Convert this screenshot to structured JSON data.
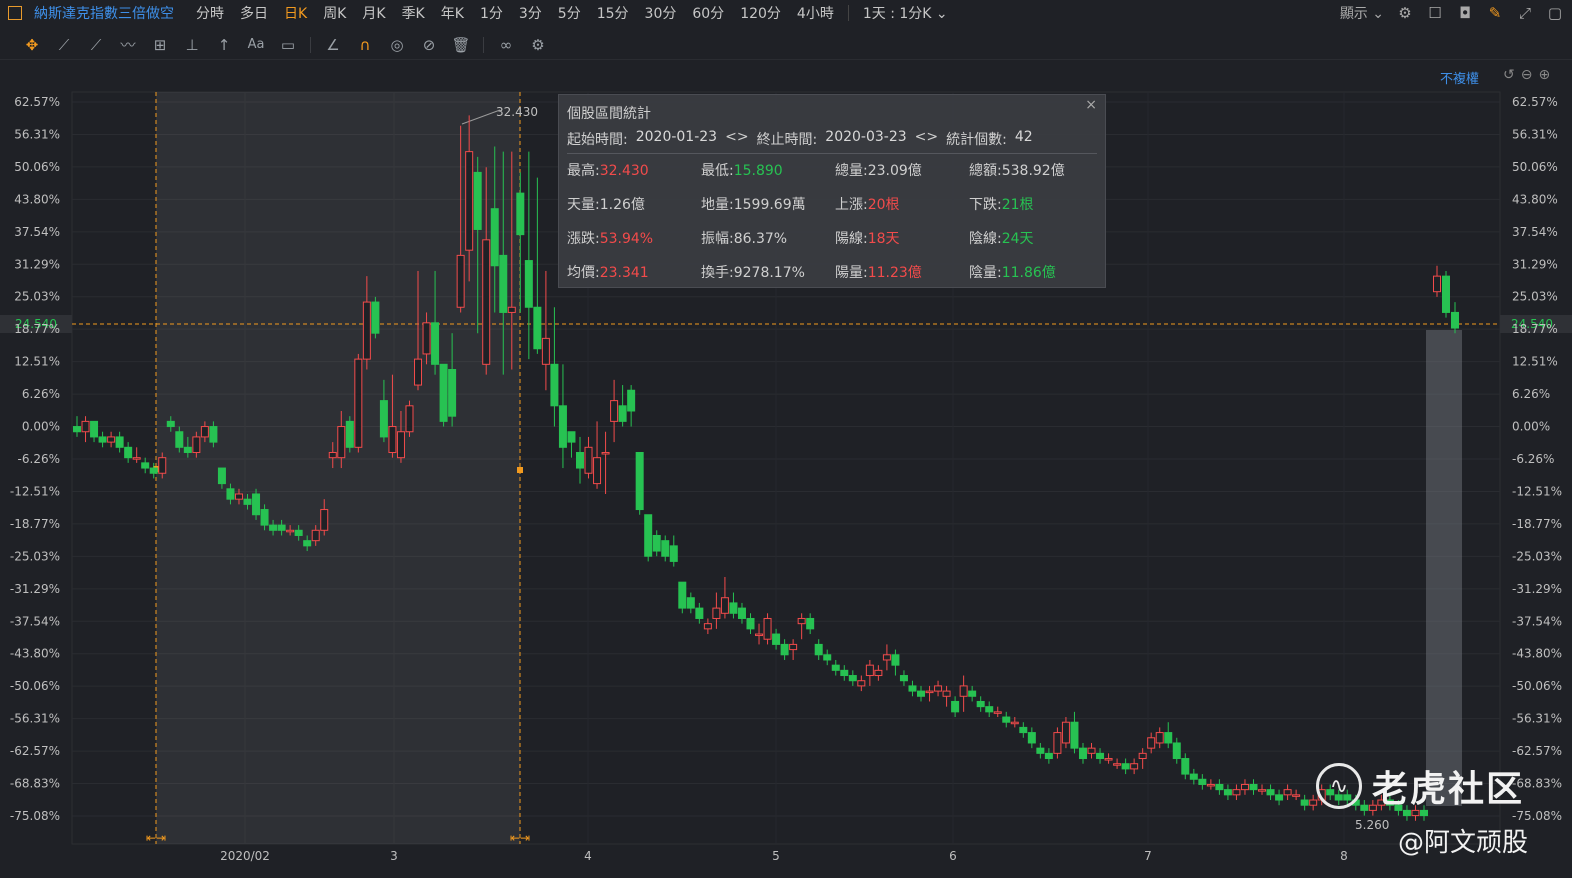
{
  "header": {
    "symbol": "納斯達克指數三倍做空",
    "timeframes": [
      "分時",
      "多日",
      "日K",
      "周K",
      "月K",
      "季K",
      "年K",
      "1分",
      "3分",
      "5分",
      "15分",
      "30分",
      "60分",
      "120分",
      "4小時"
    ],
    "active_timeframe": "日K",
    "range_select": "1天 : 1分K",
    "display_label": "顯示"
  },
  "toolbar_icons": [
    "move-icon",
    "line-icon",
    "channel-icon",
    "wave-icon",
    "measure-icon",
    "arrow-up-icon",
    "arrow-icon",
    "text-icon",
    "comment-icon",
    "angle-icon",
    "magnet-icon",
    "eye-icon",
    "hide-icon",
    "delete-icon",
    "link-icon",
    "settings-icon"
  ],
  "adjust_label": "不複權",
  "stats": {
    "title": "個股區間統計",
    "start_label": "起始時間:",
    "start": "2020-01-23",
    "end_label": "終止時間:",
    "end": "2020-03-23",
    "count_label": "統計個數:",
    "count": "42",
    "rows": [
      [
        {
          "label": "最高:",
          "value": "32.430",
          "color": "red"
        },
        {
          "label": "最低:",
          "value": "15.890",
          "color": "green"
        },
        {
          "label": "總量:",
          "value": "23.09億",
          "color": ""
        },
        {
          "label": "總額:",
          "value": "538.92億",
          "color": ""
        }
      ],
      [
        {
          "label": "天量:",
          "value": "1.26億",
          "color": ""
        },
        {
          "label": "地量:",
          "value": "1599.69萬",
          "color": ""
        },
        {
          "label": "上漲:",
          "value": "20根",
          "color": "red"
        },
        {
          "label": "下跌:",
          "value": "21根",
          "color": "green"
        }
      ],
      [
        {
          "label": "漲跌:",
          "value": "53.94%",
          "color": "red"
        },
        {
          "label": "振幅:",
          "value": "86.37%",
          "color": ""
        },
        {
          "label": "陽線:",
          "value": "18天",
          "color": "red"
        },
        {
          "label": "陰線:",
          "value": "24天",
          "color": "green"
        }
      ],
      [
        {
          "label": "均價:",
          "value": "23.341",
          "color": "red"
        },
        {
          "label": "換手:",
          "value": "9278.17%",
          "color": ""
        },
        {
          "label": "陽量:",
          "value": "11.23億",
          "color": "red"
        },
        {
          "label": "陰量:",
          "value": "11.86億",
          "color": "green"
        }
      ]
    ]
  },
  "chart_data": {
    "type": "candlestick",
    "y_ticks": [
      "62.57%",
      "56.31%",
      "50.06%",
      "43.80%",
      "37.54%",
      "31.29%",
      "25.03%",
      "18.77%",
      "12.51%",
      "6.26%",
      "0.00%",
      "-6.26%",
      "-12.51%",
      "-18.77%",
      "-25.03%",
      "-31.29%",
      "-37.54%",
      "-43.80%",
      "-50.06%",
      "-56.31%",
      "-62.57%",
      "-68.83%",
      "-75.08%"
    ],
    "ylim_pct": [
      -75.08,
      62.57
    ],
    "x_ticks": [
      "2020/02",
      "3",
      "4",
      "5",
      "6",
      "7",
      "8"
    ],
    "crosshair_value": "24.540",
    "high_marker": "32.430",
    "low_marker": "5.260",
    "colors": {
      "up": "#f24b4b",
      "down": "#27c252",
      "marker": "#f29a1f"
    },
    "candles_pct": [
      [
        0,
        -1,
        2,
        -2
      ],
      [
        -1,
        1,
        2,
        -3
      ],
      [
        1,
        -2,
        1,
        -3
      ],
      [
        -2,
        -3,
        -1,
        -4
      ],
      [
        -3,
        -2,
        -1,
        -4
      ],
      [
        -2,
        -4,
        -1,
        -5
      ],
      [
        -4,
        -6,
        -3,
        -7
      ],
      [
        -6,
        -6,
        -4,
        -7
      ],
      [
        -7,
        -8,
        -6,
        -9
      ],
      [
        -8,
        -9,
        -7,
        -10
      ],
      [
        -9,
        -6,
        -5,
        -10
      ],
      [
        1,
        0,
        2,
        -1
      ],
      [
        -1,
        -4,
        0,
        -5
      ],
      [
        -4,
        -5,
        -2,
        -6
      ],
      [
        -5,
        -2,
        -1,
        -6
      ],
      [
        -2,
        0,
        1,
        -3
      ],
      [
        0,
        -3,
        1,
        -4
      ],
      [
        -8,
        -11,
        -8,
        -12
      ],
      [
        -12,
        -14,
        -11,
        -15
      ],
      [
        -14,
        -13,
        -12,
        -15
      ],
      [
        -14,
        -15,
        -13,
        -16
      ],
      [
        -13,
        -17,
        -12,
        -18
      ],
      [
        -16,
        -19,
        -15,
        -20
      ],
      [
        -19,
        -20,
        -18,
        -21
      ],
      [
        -19,
        -20,
        -18,
        -21
      ],
      [
        -20,
        -20,
        -19,
        -21
      ],
      [
        -20,
        -21,
        -19,
        -22
      ],
      [
        -22,
        -23,
        -21,
        -24
      ],
      [
        -22,
        -20,
        -19,
        -23
      ],
      [
        -20,
        -16,
        -14,
        -21
      ],
      [
        -6,
        -5,
        -3,
        -8
      ],
      [
        -6,
        0,
        3,
        -8
      ],
      [
        1,
        -4,
        2,
        -5
      ],
      [
        -4,
        13,
        14,
        -5
      ],
      [
        13,
        24,
        29,
        11
      ],
      [
        24,
        18,
        25,
        17
      ],
      [
        5,
        -2,
        9,
        -3
      ],
      [
        -5,
        0,
        10,
        -6
      ],
      [
        -6,
        -1,
        3,
        -7
      ],
      [
        -1,
        4,
        5,
        -2
      ],
      [
        8,
        13,
        30,
        7
      ],
      [
        14,
        20,
        22,
        12
      ],
      [
        20,
        12,
        30,
        10
      ],
      [
        12,
        1,
        10,
        0
      ],
      [
        11,
        2,
        18,
        0
      ],
      [
        23,
        33,
        58,
        22
      ],
      [
        34,
        53,
        60,
        28
      ],
      [
        49,
        38,
        52,
        18
      ],
      [
        12,
        36,
        50,
        10
      ],
      [
        42,
        31,
        54,
        22
      ],
      [
        33,
        22,
        53,
        10
      ],
      [
        22,
        23,
        53,
        11
      ],
      [
        45,
        37,
        49,
        22
      ],
      [
        32,
        23,
        53,
        13
      ],
      [
        23,
        15,
        48,
        14
      ],
      [
        12,
        17,
        30,
        7
      ],
      [
        12,
        4,
        23,
        0
      ],
      [
        4,
        -4,
        12,
        -8
      ],
      [
        -1,
        -3,
        -1,
        -6
      ],
      [
        -5,
        -8,
        -2,
        -11
      ],
      [
        -9,
        -4,
        -2,
        -10
      ],
      [
        -11,
        -6,
        1,
        -12
      ],
      [
        -5,
        -5,
        -1,
        -13
      ],
      [
        1,
        5,
        9,
        -3
      ],
      [
        4,
        1,
        8,
        0
      ],
      [
        7,
        3,
        8,
        0
      ],
      [
        -5,
        -16,
        -5,
        -17
      ],
      [
        -17,
        -25,
        -17,
        -26
      ],
      [
        -21,
        -24,
        -20,
        -25
      ],
      [
        -22,
        -25,
        -21,
        -26
      ],
      [
        -23,
        -26,
        -21,
        -27
      ],
      [
        -30,
        -35,
        -30,
        -36
      ],
      [
        -33,
        -35,
        -32,
        -36
      ],
      [
        -35,
        -37,
        -34,
        -38
      ],
      [
        -39,
        -38,
        -37,
        -40
      ],
      [
        -37,
        -35,
        -32,
        -39
      ],
      [
        -36,
        -33,
        -29,
        -37
      ],
      [
        -34,
        -36,
        -32,
        -37
      ],
      [
        -35,
        -37,
        -34,
        -38
      ],
      [
        -37,
        -39,
        -36,
        -40
      ],
      [
        -40,
        -40,
        -38,
        -42
      ],
      [
        -41,
        -37,
        -36,
        -42
      ],
      [
        -40,
        -42,
        -39,
        -43
      ],
      [
        -42,
        -44,
        -41,
        -45
      ],
      [
        -43,
        -42,
        -41,
        -45
      ],
      [
        -38,
        -37,
        -36,
        -41
      ],
      [
        -37,
        -39,
        -36,
        -40
      ],
      [
        -42,
        -44,
        -41,
        -45
      ],
      [
        -44,
        -45,
        -43,
        -46
      ],
      [
        -46,
        -47,
        -45,
        -48
      ],
      [
        -47,
        -48,
        -46,
        -49
      ],
      [
        -48,
        -49,
        -47,
        -50
      ],
      [
        -50,
        -49,
        -48,
        -51
      ],
      [
        -48,
        -46,
        -45,
        -50
      ],
      [
        -48,
        -47,
        -46,
        -49
      ],
      [
        -45,
        -44,
        -42,
        -47
      ],
      [
        -44,
        -46,
        -43,
        -48
      ],
      [
        -48,
        -49,
        -47,
        -50
      ],
      [
        -50,
        -51,
        -49,
        -52
      ],
      [
        -51,
        -52,
        -50,
        -53
      ],
      [
        -51,
        -51,
        -50,
        -53
      ],
      [
        -51,
        -50,
        -49,
        -52
      ],
      [
        -52,
        -51,
        -50,
        -54
      ],
      [
        -53,
        -55,
        -52,
        -56
      ],
      [
        -52,
        -50,
        -48,
        -55
      ],
      [
        -51,
        -52,
        -50,
        -53
      ],
      [
        -53,
        -54,
        -52,
        -55
      ],
      [
        -54,
        -55,
        -53,
        -56
      ],
      [
        -55,
        -55,
        -54,
        -56
      ],
      [
        -56,
        -57,
        -55,
        -58
      ],
      [
        -57,
        -57,
        -56,
        -58
      ],
      [
        -58,
        -59,
        -57,
        -60
      ],
      [
        -59,
        -61,
        -58,
        -62
      ],
      [
        -62,
        -63,
        -61,
        -64
      ],
      [
        -63,
        -64,
        -62,
        -65
      ],
      [
        -63,
        -59,
        -58,
        -64
      ],
      [
        -61,
        -57,
        -56,
        -62
      ],
      [
        -57,
        -62,
        -55,
        -63
      ],
      [
        -62,
        -64,
        -61,
        -65
      ],
      [
        -63,
        -62,
        -61,
        -64
      ],
      [
        -63,
        -64,
        -62,
        -65
      ],
      [
        -64,
        -64,
        -63,
        -65
      ],
      [
        -65,
        -65,
        -64,
        -66
      ],
      [
        -65,
        -66,
        -64,
        -67
      ],
      [
        -66,
        -65,
        -64,
        -67
      ],
      [
        -64,
        -63,
        -62,
        -66
      ],
      [
        -62,
        -60,
        -59,
        -63
      ],
      [
        -61,
        -59,
        -58,
        -62
      ],
      [
        -59,
        -61,
        -57,
        -62
      ],
      [
        -61,
        -64,
        -60,
        -65
      ],
      [
        -64,
        -67,
        -63,
        -68
      ],
      [
        -67,
        -68,
        -66,
        -69
      ],
      [
        -68,
        -69,
        -67,
        -70
      ],
      [
        -69,
        -69,
        -68,
        -70
      ],
      [
        -69,
        -70,
        -68,
        -71
      ],
      [
        -70,
        -71,
        -69,
        -72
      ],
      [
        -71,
        -70,
        -69,
        -72
      ],
      [
        -70,
        -69,
        -68,
        -71
      ],
      [
        -69,
        -70,
        -68,
        -71
      ],
      [
        -70,
        -70,
        -69,
        -71
      ],
      [
        -70,
        -71,
        -69,
        -72
      ],
      [
        -71,
        -72,
        -70,
        -73
      ],
      [
        -71,
        -70,
        -69,
        -72
      ],
      [
        -71,
        -71,
        -70,
        -72
      ],
      [
        -72,
        -73,
        -71,
        -74
      ],
      [
        -73,
        -72,
        -71,
        -74
      ],
      [
        -72,
        -70,
        -69,
        -73
      ],
      [
        -70,
        -71,
        -69,
        -72
      ],
      [
        -71,
        -72,
        -70,
        -73
      ],
      [
        -71,
        -72,
        -70,
        -73
      ],
      [
        -72,
        -73,
        -71,
        -74
      ],
      [
        -73,
        -74,
        -72,
        -75
      ],
      [
        -74,
        -73,
        -72,
        -75
      ],
      [
        -73,
        -72,
        -71,
        -74
      ],
      [
        -72,
        -73,
        -71,
        -74
      ],
      [
        -73,
        -74,
        -72,
        -75
      ],
      [
        -74,
        -75,
        -73,
        -76
      ],
      [
        -75,
        -74,
        -73,
        -76
      ],
      [
        -74,
        -75,
        -73,
        -76
      ],
      [
        26,
        29,
        31,
        25
      ],
      [
        29,
        22,
        30,
        21
      ],
      [
        22,
        19,
        24,
        18
      ]
    ]
  }
}
